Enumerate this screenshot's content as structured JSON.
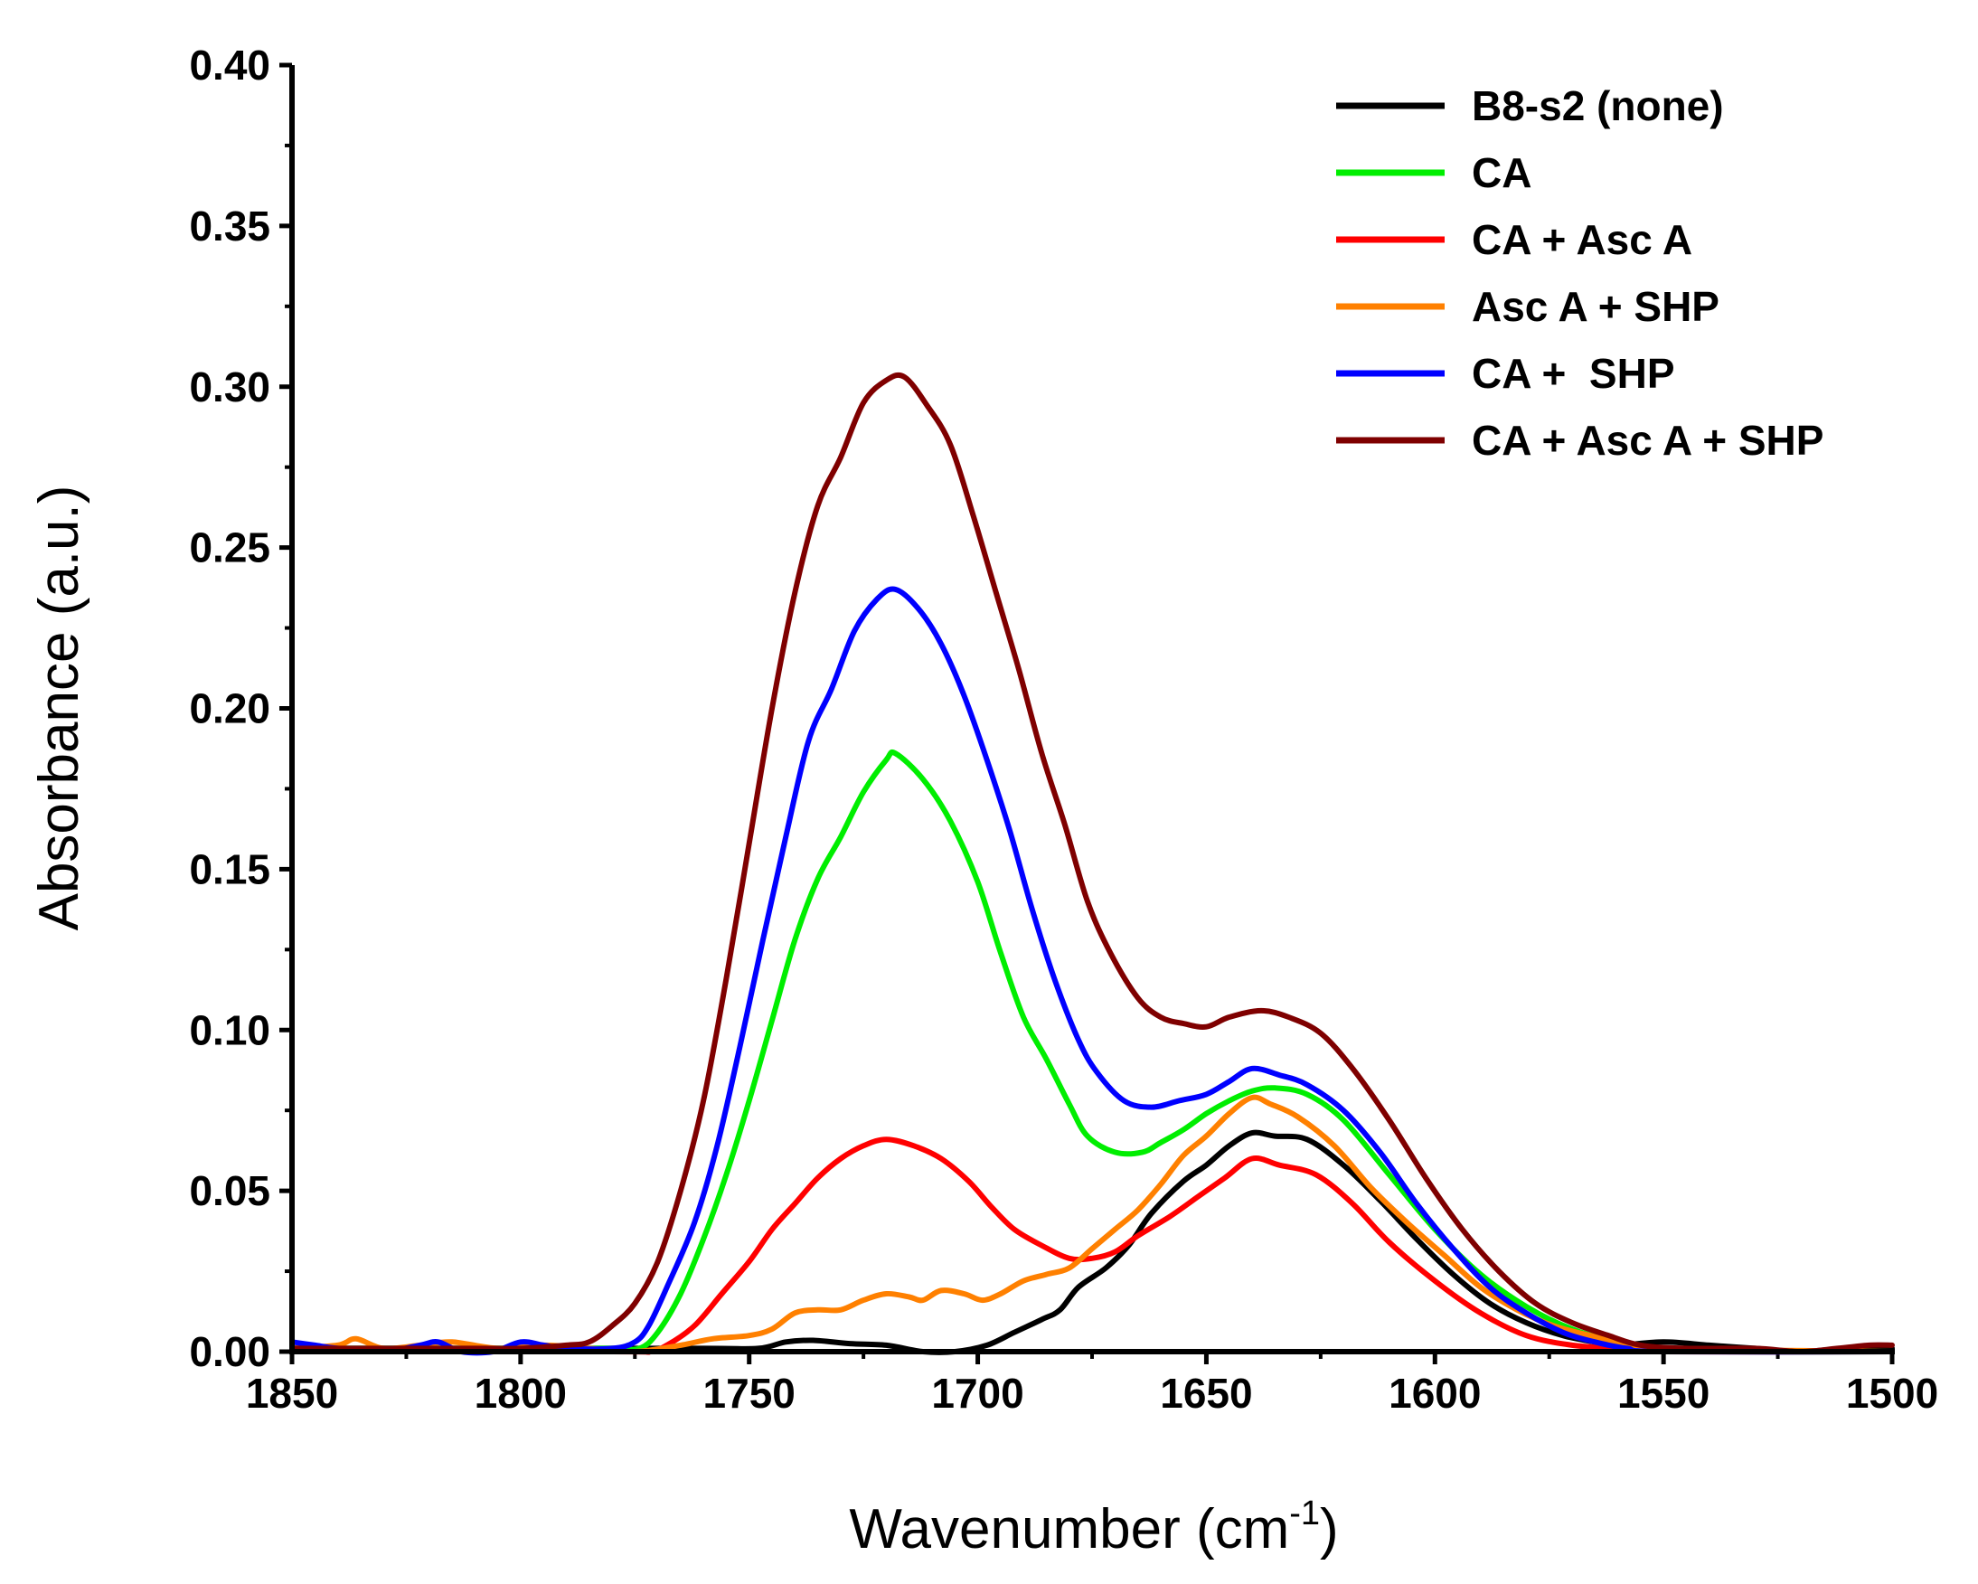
{
  "chart_data": {
    "type": "line",
    "title": "",
    "xlabel": "Wavenumber (cm",
    "xlabel_superscript": "-1",
    "xlabel_suffix": ")",
    "ylabel": "Absorbance (a.u.)",
    "xlim": [
      1850,
      1500
    ],
    "x_reversed": true,
    "ylim": [
      0,
      0.4
    ],
    "x_ticks": [
      "1850",
      "1800",
      "1750",
      "1700",
      "1650",
      "1600",
      "1550",
      "1500"
    ],
    "y_ticks": [
      "0.00",
      "0.05",
      "0.10",
      "0.15",
      "0.20",
      "0.25",
      "0.30",
      "0.35",
      "0.40"
    ],
    "grid": false,
    "legend_position": "top-right",
    "series": [
      {
        "name": "B8-s2 (none)",
        "color": "#000000",
        "points": [
          [
            1850,
            0.001
          ],
          [
            1800,
            0.001
          ],
          [
            1760,
            0.001
          ],
          [
            1748,
            0.001
          ],
          [
            1742,
            0.003
          ],
          [
            1736,
            0.0035
          ],
          [
            1728,
            0.0025
          ],
          [
            1720,
            0.002
          ],
          [
            1712,
            0.0
          ],
          [
            1705,
            0.0
          ],
          [
            1698,
            0.002
          ],
          [
            1692,
            0.006
          ],
          [
            1686,
            0.01
          ],
          [
            1682,
            0.013
          ],
          [
            1678,
            0.02
          ],
          [
            1672,
            0.026
          ],
          [
            1667,
            0.033
          ],
          [
            1662,
            0.043
          ],
          [
            1655,
            0.053
          ],
          [
            1650,
            0.058
          ],
          [
            1645,
            0.064
          ],
          [
            1640,
            0.068
          ],
          [
            1635,
            0.067
          ],
          [
            1628,
            0.066
          ],
          [
            1620,
            0.058
          ],
          [
            1612,
            0.047
          ],
          [
            1604,
            0.035
          ],
          [
            1596,
            0.024
          ],
          [
            1588,
            0.015
          ],
          [
            1580,
            0.009
          ],
          [
            1572,
            0.005
          ],
          [
            1565,
            0.003
          ],
          [
            1560,
            0.002
          ],
          [
            1550,
            0.003
          ],
          [
            1540,
            0.002
          ],
          [
            1530,
            0.001
          ],
          [
            1520,
            0.0
          ],
          [
            1510,
            0.001
          ],
          [
            1500,
            0.001
          ]
        ]
      },
      {
        "name": "CA",
        "color": "#00ee00",
        "points": [
          [
            1850,
            0.001
          ],
          [
            1790,
            0.001
          ],
          [
            1780,
            0.001
          ],
          [
            1774,
            0.001
          ],
          [
            1770,
            0.006
          ],
          [
            1765,
            0.018
          ],
          [
            1760,
            0.035
          ],
          [
            1755,
            0.055
          ],
          [
            1750,
            0.078
          ],
          [
            1745,
            0.103
          ],
          [
            1740,
            0.128
          ],
          [
            1735,
            0.147
          ],
          [
            1730,
            0.16
          ],
          [
            1725,
            0.174
          ],
          [
            1720,
            0.184
          ],
          [
            1718,
            0.186
          ],
          [
            1712,
            0.178
          ],
          [
            1706,
            0.165
          ],
          [
            1700,
            0.146
          ],
          [
            1695,
            0.124
          ],
          [
            1690,
            0.104
          ],
          [
            1685,
            0.091
          ],
          [
            1680,
            0.077
          ],
          [
            1676,
            0.067
          ],
          [
            1670,
            0.062
          ],
          [
            1664,
            0.062
          ],
          [
            1660,
            0.065
          ],
          [
            1655,
            0.069
          ],
          [
            1650,
            0.074
          ],
          [
            1645,
            0.078
          ],
          [
            1640,
            0.081
          ],
          [
            1635,
            0.082
          ],
          [
            1628,
            0.08
          ],
          [
            1620,
            0.072
          ],
          [
            1610,
            0.055
          ],
          [
            1600,
            0.038
          ],
          [
            1590,
            0.024
          ],
          [
            1580,
            0.014
          ],
          [
            1570,
            0.007
          ],
          [
            1560,
            0.003
          ],
          [
            1550,
            0.001
          ],
          [
            1540,
            0.0
          ],
          [
            1500,
            0.0
          ]
        ]
      },
      {
        "name": "CA + Asc A",
        "color": "#ff0000",
        "points": [
          [
            1850,
            0.0
          ],
          [
            1780,
            0.0
          ],
          [
            1772,
            0.0
          ],
          [
            1768,
            0.002
          ],
          [
            1762,
            0.008
          ],
          [
            1756,
            0.018
          ],
          [
            1750,
            0.028
          ],
          [
            1745,
            0.038
          ],
          [
            1740,
            0.046
          ],
          [
            1735,
            0.054
          ],
          [
            1730,
            0.06
          ],
          [
            1725,
            0.064
          ],
          [
            1720,
            0.066
          ],
          [
            1714,
            0.064
          ],
          [
            1708,
            0.06
          ],
          [
            1702,
            0.053
          ],
          [
            1697,
            0.045
          ],
          [
            1692,
            0.038
          ],
          [
            1686,
            0.033
          ],
          [
            1680,
            0.029
          ],
          [
            1675,
            0.029
          ],
          [
            1670,
            0.031
          ],
          [
            1665,
            0.036
          ],
          [
            1658,
            0.042
          ],
          [
            1652,
            0.048
          ],
          [
            1646,
            0.054
          ],
          [
            1640,
            0.06
          ],
          [
            1634,
            0.058
          ],
          [
            1626,
            0.055
          ],
          [
            1618,
            0.046
          ],
          [
            1610,
            0.034
          ],
          [
            1600,
            0.022
          ],
          [
            1590,
            0.012
          ],
          [
            1580,
            0.005
          ],
          [
            1570,
            0.002
          ],
          [
            1560,
            0.001
          ],
          [
            1550,
            0.0
          ],
          [
            1500,
            0.0
          ]
        ]
      },
      {
        "name": "Asc A + SHP",
        "color": "#ff8000",
        "points": [
          [
            1850,
            0.001
          ],
          [
            1840,
            0.002
          ],
          [
            1836,
            0.004
          ],
          [
            1830,
            0.001
          ],
          [
            1822,
            0.002
          ],
          [
            1815,
            0.003
          ],
          [
            1805,
            0.001
          ],
          [
            1795,
            0.002
          ],
          [
            1785,
            0.001
          ],
          [
            1775,
            0.0
          ],
          [
            1765,
            0.002
          ],
          [
            1758,
            0.004
          ],
          [
            1750,
            0.005
          ],
          [
            1745,
            0.007
          ],
          [
            1740,
            0.012
          ],
          [
            1735,
            0.013
          ],
          [
            1730,
            0.013
          ],
          [
            1725,
            0.016
          ],
          [
            1720,
            0.018
          ],
          [
            1715,
            0.017
          ],
          [
            1712,
            0.016
          ],
          [
            1708,
            0.019
          ],
          [
            1703,
            0.018
          ],
          [
            1699,
            0.016
          ],
          [
            1695,
            0.018
          ],
          [
            1690,
            0.022
          ],
          [
            1685,
            0.024
          ],
          [
            1680,
            0.026
          ],
          [
            1675,
            0.032
          ],
          [
            1670,
            0.038
          ],
          [
            1665,
            0.044
          ],
          [
            1660,
            0.052
          ],
          [
            1655,
            0.061
          ],
          [
            1650,
            0.067
          ],
          [
            1645,
            0.074
          ],
          [
            1640,
            0.079
          ],
          [
            1636,
            0.077
          ],
          [
            1630,
            0.073
          ],
          [
            1622,
            0.064
          ],
          [
            1614,
            0.051
          ],
          [
            1606,
            0.04
          ],
          [
            1598,
            0.03
          ],
          [
            1590,
            0.02
          ],
          [
            1582,
            0.013
          ],
          [
            1574,
            0.008
          ],
          [
            1566,
            0.005
          ],
          [
            1560,
            0.003
          ],
          [
            1550,
            0.001
          ],
          [
            1500,
            0.0
          ]
        ]
      },
      {
        "name": "CA +  SHP",
        "color": "#0000ff",
        "points": [
          [
            1850,
            0.003
          ],
          [
            1845,
            0.002
          ],
          [
            1840,
            0.001
          ],
          [
            1830,
            0.0
          ],
          [
            1822,
            0.002
          ],
          [
            1818,
            0.003
          ],
          [
            1813,
            0.0
          ],
          [
            1806,
            0.0
          ],
          [
            1800,
            0.003
          ],
          [
            1795,
            0.002
          ],
          [
            1790,
            0.001
          ],
          [
            1780,
            0.001
          ],
          [
            1775,
            0.003
          ],
          [
            1772,
            0.008
          ],
          [
            1768,
            0.02
          ],
          [
            1762,
            0.04
          ],
          [
            1757,
            0.064
          ],
          [
            1752,
            0.095
          ],
          [
            1747,
            0.128
          ],
          [
            1742,
            0.16
          ],
          [
            1737,
            0.19
          ],
          [
            1732,
            0.206
          ],
          [
            1727,
            0.224
          ],
          [
            1722,
            0.234
          ],
          [
            1718,
            0.237
          ],
          [
            1713,
            0.231
          ],
          [
            1708,
            0.22
          ],
          [
            1703,
            0.204
          ],
          [
            1698,
            0.184
          ],
          [
            1693,
            0.162
          ],
          [
            1688,
            0.137
          ],
          [
            1683,
            0.115
          ],
          [
            1678,
            0.097
          ],
          [
            1674,
            0.087
          ],
          [
            1668,
            0.078
          ],
          [
            1662,
            0.076
          ],
          [
            1656,
            0.078
          ],
          [
            1650,
            0.08
          ],
          [
            1645,
            0.084
          ],
          [
            1640,
            0.088
          ],
          [
            1634,
            0.086
          ],
          [
            1628,
            0.083
          ],
          [
            1620,
            0.075
          ],
          [
            1612,
            0.062
          ],
          [
            1604,
            0.046
          ],
          [
            1596,
            0.032
          ],
          [
            1588,
            0.02
          ],
          [
            1580,
            0.012
          ],
          [
            1572,
            0.006
          ],
          [
            1565,
            0.003
          ],
          [
            1558,
            0.001
          ],
          [
            1550,
            0.0
          ],
          [
            1500,
            0.0
          ]
        ]
      },
      {
        "name": "CA + Asc A + SHP",
        "color": "#7f0000",
        "points": [
          [
            1850,
            0.001
          ],
          [
            1810,
            0.001
          ],
          [
            1800,
            0.001
          ],
          [
            1790,
            0.002
          ],
          [
            1785,
            0.003
          ],
          [
            1780,
            0.008
          ],
          [
            1775,
            0.015
          ],
          [
            1770,
            0.028
          ],
          [
            1765,
            0.05
          ],
          [
            1760,
            0.078
          ],
          [
            1755,
            0.116
          ],
          [
            1750,
            0.158
          ],
          [
            1745,
            0.2
          ],
          [
            1740,
            0.236
          ],
          [
            1735,
            0.263
          ],
          [
            1730,
            0.278
          ],
          [
            1725,
            0.295
          ],
          [
            1720,
            0.302
          ],
          [
            1716,
            0.303
          ],
          [
            1711,
            0.294
          ],
          [
            1706,
            0.282
          ],
          [
            1701,
            0.26
          ],
          [
            1696,
            0.236
          ],
          [
            1691,
            0.212
          ],
          [
            1686,
            0.186
          ],
          [
            1681,
            0.164
          ],
          [
            1676,
            0.14
          ],
          [
            1671,
            0.124
          ],
          [
            1665,
            0.11
          ],
          [
            1660,
            0.104
          ],
          [
            1655,
            0.102
          ],
          [
            1650,
            0.101
          ],
          [
            1645,
            0.104
          ],
          [
            1638,
            0.106
          ],
          [
            1632,
            0.104
          ],
          [
            1625,
            0.099
          ],
          [
            1618,
            0.088
          ],
          [
            1610,
            0.072
          ],
          [
            1602,
            0.054
          ],
          [
            1594,
            0.038
          ],
          [
            1586,
            0.025
          ],
          [
            1578,
            0.015
          ],
          [
            1570,
            0.009
          ],
          [
            1562,
            0.005
          ],
          [
            1555,
            0.002
          ],
          [
            1545,
            0.001
          ],
          [
            1530,
            0.001
          ],
          [
            1520,
            0.0
          ],
          [
            1512,
            0.001
          ],
          [
            1505,
            0.002
          ],
          [
            1500,
            0.002
          ]
        ]
      }
    ]
  }
}
